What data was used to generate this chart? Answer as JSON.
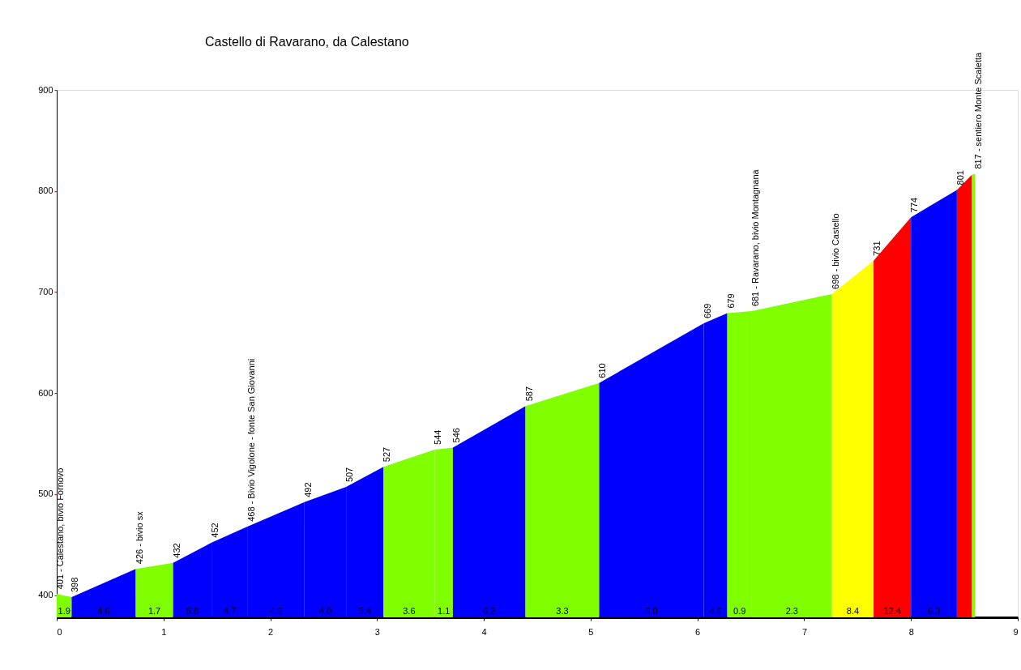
{
  "chart_data": {
    "type": "area",
    "title": "Castello di Ravarano, da Calestano",
    "xlim": [
      0,
      9
    ],
    "xticks": [
      0,
      1,
      2,
      3,
      4,
      5,
      6,
      7,
      8,
      9
    ],
    "ylim": [
      378,
      900
    ],
    "yticks": [
      400,
      500,
      600,
      700,
      800,
      900
    ],
    "grid": false,
    "series": [
      {
        "color": "#80ff00",
        "x": [
          0,
          0.14
        ],
        "values": [
          401,
          398
        ]
      },
      {
        "color": "#0000ff",
        "x": [
          0.14,
          0.74
        ],
        "values": [
          398,
          426
        ]
      },
      {
        "color": "#80ff00",
        "x": [
          0.74,
          1.09
        ],
        "values": [
          426,
          432
        ]
      },
      {
        "color": "#0000ff",
        "x": [
          1.09,
          1.45
        ],
        "values": [
          432,
          452
        ]
      },
      {
        "color": "#0000ff",
        "x": [
          1.45,
          1.79
        ],
        "values": [
          452,
          468
        ]
      },
      {
        "color": "#0000ff",
        "x": [
          1.79,
          2.32
        ],
        "values": [
          468,
          492
        ]
      },
      {
        "color": "#0000ff",
        "x": [
          2.32,
          2.71
        ],
        "values": [
          492,
          507
        ]
      },
      {
        "color": "#0000ff",
        "x": [
          2.71,
          3.06
        ],
        "values": [
          507,
          527
        ]
      },
      {
        "color": "#80ff00",
        "x": [
          3.06,
          3.54
        ],
        "values": [
          527,
          544
        ]
      },
      {
        "color": "#80ff00",
        "x": [
          3.54,
          3.71
        ],
        "values": [
          544,
          546
        ]
      },
      {
        "color": "#0000ff",
        "x": [
          3.71,
          4.39
        ],
        "values": [
          546,
          587
        ]
      },
      {
        "color": "#80ff00",
        "x": [
          4.39,
          5.08
        ],
        "values": [
          587,
          610
        ]
      },
      {
        "color": "#0000ff",
        "x": [
          5.08,
          6.06
        ],
        "values": [
          610,
          669
        ]
      },
      {
        "color": "#0000ff",
        "x": [
          6.06,
          6.28
        ],
        "values": [
          669,
          679
        ]
      },
      {
        "color": "#80ff00",
        "x": [
          6.28,
          6.51
        ],
        "values": [
          679,
          681
        ]
      },
      {
        "color": "#80ff00",
        "x": [
          6.51,
          7.26
        ],
        "values": [
          681,
          698
        ]
      },
      {
        "color": "#ffff00",
        "x": [
          7.26,
          7.65
        ],
        "values": [
          698,
          731
        ]
      },
      {
        "color": "#ff0000",
        "x": [
          7.65,
          8.0
        ],
        "values": [
          731,
          774
        ]
      },
      {
        "color": "#0000ff",
        "x": [
          8.0,
          8.43
        ],
        "values": [
          774,
          801
        ]
      },
      {
        "color": "#ff0000",
        "x": [
          8.43,
          8.57
        ],
        "values": [
          801,
          816
        ]
      },
      {
        "color": "#80ff00",
        "x": [
          8.57,
          8.6
        ],
        "values": [
          816,
          817
        ]
      }
    ],
    "annotations": [
      {
        "text": "401 - Calestano, bivio Fornovo",
        "x": 0,
        "y": 401
      },
      {
        "text": "398",
        "x": 0.14,
        "y": 398
      },
      {
        "text": "426 - bivio sx",
        "x": 0.74,
        "y": 426
      },
      {
        "text": "432",
        "x": 1.09,
        "y": 432
      },
      {
        "text": "452",
        "x": 1.45,
        "y": 452
      },
      {
        "text": "468 - Bivio Vigolone - fonte San Giovanni",
        "x": 1.79,
        "y": 468
      },
      {
        "text": "492",
        "x": 2.32,
        "y": 492
      },
      {
        "text": "507",
        "x": 2.71,
        "y": 507
      },
      {
        "text": "527",
        "x": 3.06,
        "y": 527
      },
      {
        "text": "544",
        "x": 3.54,
        "y": 544
      },
      {
        "text": "546",
        "x": 3.71,
        "y": 546
      },
      {
        "text": "587",
        "x": 4.39,
        "y": 587
      },
      {
        "text": "610",
        "x": 5.08,
        "y": 610
      },
      {
        "text": "669",
        "x": 6.06,
        "y": 669
      },
      {
        "text": "679",
        "x": 6.28,
        "y": 679
      },
      {
        "text": "681 - Ravarano, bivio Montagnana",
        "x": 6.51,
        "y": 681
      },
      {
        "text": "698 - bivio Castello",
        "x": 7.26,
        "y": 698
      },
      {
        "text": "731",
        "x": 7.65,
        "y": 731
      },
      {
        "text": "774",
        "x": 8.0,
        "y": 774
      },
      {
        "text": "801",
        "x": 8.43,
        "y": 801
      },
      {
        "text": "817 - sentiero Monte Scaletta",
        "x": 8.6,
        "y": 817
      },
      "1.9",
      "4.6",
      "1.7",
      "5.8",
      "4.7",
      "4.6",
      "4.0",
      "5.4",
      "3.6",
      "1.1",
      "6.2",
      "3.3",
      "6.0",
      "4.6",
      "0.9",
      "2.3",
      "8.4",
      "12.4",
      "6.3"
    ]
  }
}
